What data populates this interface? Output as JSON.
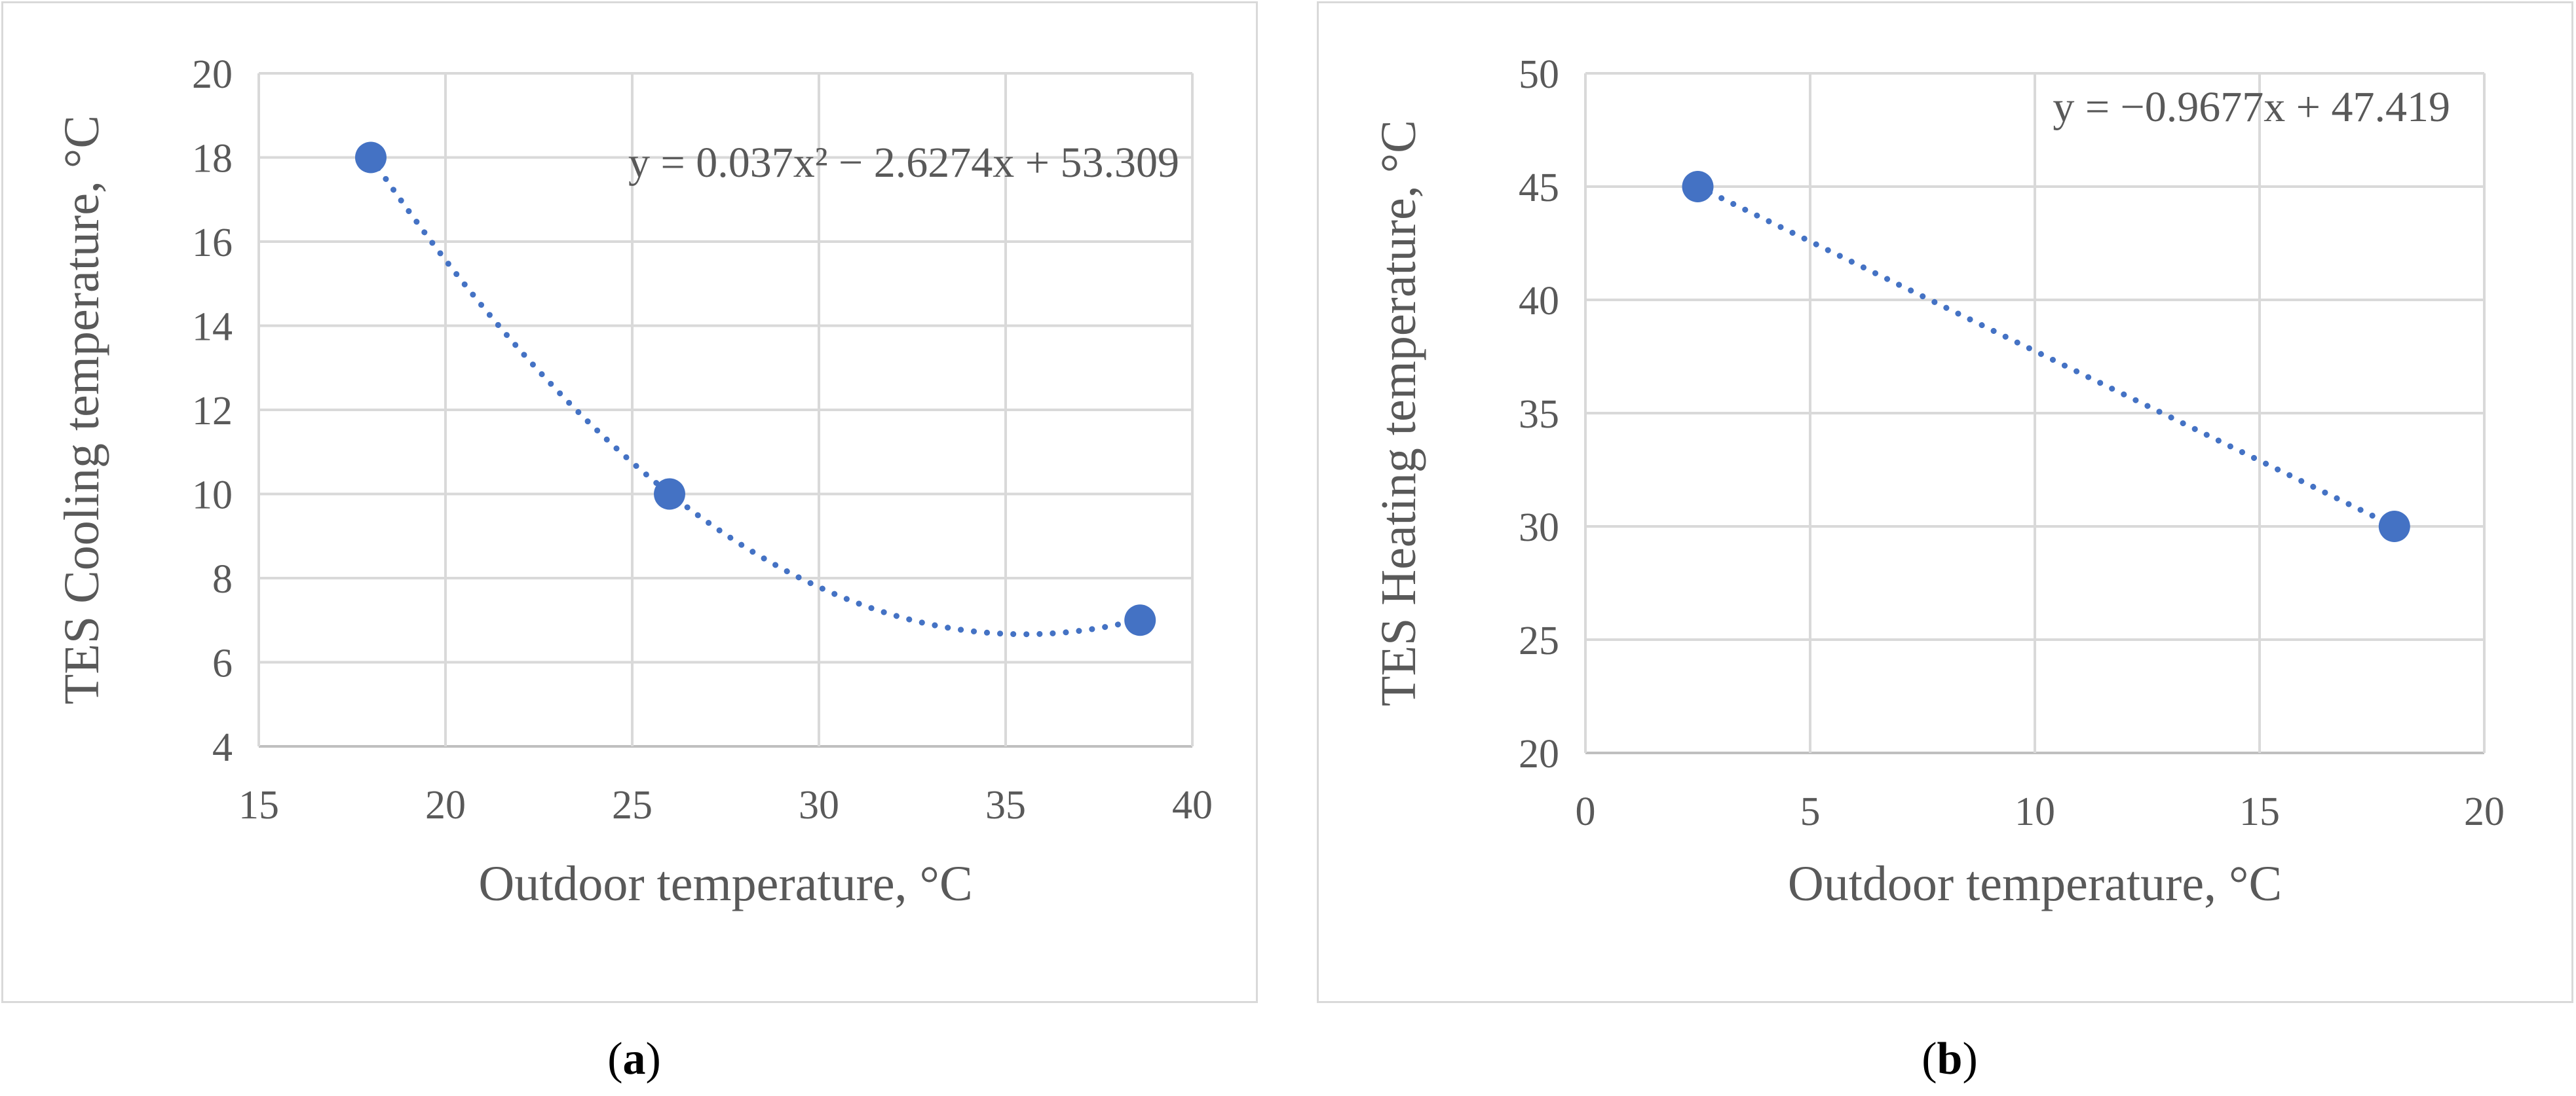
{
  "chart_data": [
    {
      "type": "scatter",
      "panel_label": "a",
      "xlabel": "Outdoor temperature, °C",
      "ylabel": "TES Cooling temperature, °C",
      "xlim": [
        15,
        40
      ],
      "ylim": [
        4,
        20
      ],
      "xticks": [
        15,
        20,
        25,
        30,
        35,
        40
      ],
      "yticks": [
        4,
        6,
        8,
        10,
        12,
        14,
        16,
        18,
        20
      ],
      "grid": true,
      "series": [
        {
          "name": "TES Cooling",
          "x": [
            18,
            26,
            38.6
          ],
          "y": [
            18,
            10,
            7
          ],
          "color": "#4472c4"
        }
      ],
      "trendline": {
        "kind": "polynomial",
        "coeffs": [
          0.037,
          -2.6274,
          53.309
        ],
        "x_range": [
          18,
          38.6
        ],
        "style": "dotted",
        "color": "#4472c4"
      },
      "equation": "y = 0.037x² − 2.6274x + 53.309"
    },
    {
      "type": "scatter",
      "panel_label": "b",
      "xlabel": "Outdoor temperature, °C",
      "ylabel": "TES Heating temperature, °C",
      "xlim": [
        0,
        20
      ],
      "ylim": [
        20,
        50
      ],
      "xticks": [
        0,
        5,
        10,
        15,
        20
      ],
      "yticks": [
        20,
        25,
        30,
        35,
        40,
        45,
        50
      ],
      "grid": true,
      "series": [
        {
          "name": "TES Heating",
          "x": [
            2.5,
            18
          ],
          "y": [
            45,
            30
          ],
          "color": "#4472c4"
        }
      ],
      "trendline": {
        "kind": "linear",
        "coeffs": [
          -0.9677,
          47.419
        ],
        "x_range": [
          2.5,
          18
        ],
        "style": "dotted",
        "color": "#4472c4"
      },
      "equation": "y = −0.9677x + 47.419"
    }
  ],
  "captions": {
    "a": "a",
    "b": "b"
  }
}
